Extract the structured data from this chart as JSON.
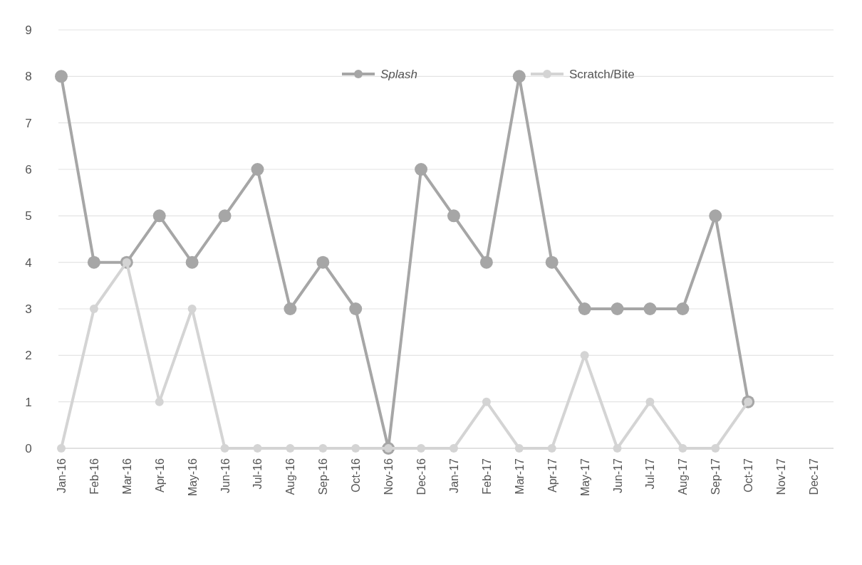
{
  "chart_data": {
    "type": "line",
    "categories": [
      "Jan-16",
      "Feb-16",
      "Mar-16",
      "Apr-16",
      "May-16",
      "Jun-16",
      "Jul-16",
      "Aug-16",
      "Sep-16",
      "Oct-16",
      "Nov-16",
      "Dec-16",
      "Jan-17",
      "Feb-17",
      "Mar-17",
      "Apr-17",
      "May-17",
      "Jun-17",
      "Jul-17",
      "Aug-17",
      "Sep-17",
      "Oct-17",
      "Nov-17",
      "Dec-17"
    ],
    "series": [
      {
        "name": "Splash",
        "color": "#a6a6a6",
        "values": [
          8,
          4,
          4,
          5,
          4,
          5,
          6,
          3,
          4,
          3,
          0,
          6,
          5,
          4,
          8,
          4,
          3,
          3,
          3,
          3,
          5,
          1,
          null,
          null
        ]
      },
      {
        "name": "Scratch/Bite",
        "color": "#d4d4d4",
        "values": [
          0,
          3,
          4,
          1,
          3,
          0,
          0,
          0,
          0,
          0,
          0,
          0,
          0,
          1,
          0,
          0,
          2,
          0,
          1,
          0,
          0,
          1,
          null,
          null
        ]
      }
    ],
    "ylim": [
      0,
      9
    ],
    "yticks": [
      0,
      1,
      2,
      3,
      4,
      5,
      6,
      7,
      8,
      9
    ],
    "grid": "y",
    "legend": "top",
    "marker": "circle",
    "line_style": "solid"
  }
}
